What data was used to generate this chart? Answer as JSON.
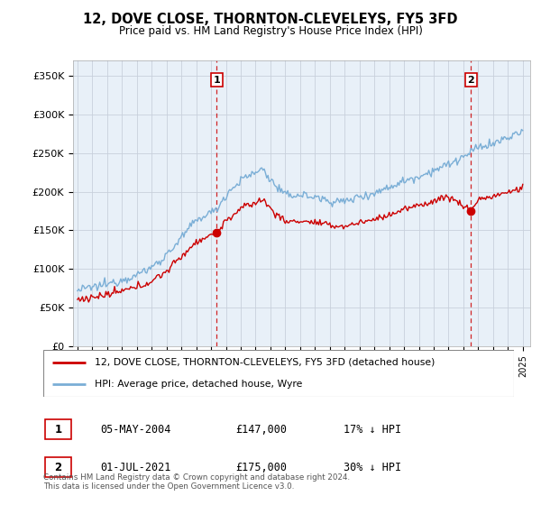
{
  "title": "12, DOVE CLOSE, THORNTON-CLEVELEYS, FY5 3FD",
  "subtitle": "Price paid vs. HM Land Registry's House Price Index (HPI)",
  "ylabel_ticks": [
    "£0",
    "£50K",
    "£100K",
    "£150K",
    "£200K",
    "£250K",
    "£300K",
    "£350K"
  ],
  "ytick_values": [
    0,
    50000,
    100000,
    150000,
    200000,
    250000,
    300000,
    350000
  ],
  "ylim": [
    0,
    370000
  ],
  "xlim_left": 1994.7,
  "xlim_right": 2025.5,
  "legend_line1": "12, DOVE CLOSE, THORNTON-CLEVELEYS, FY5 3FD (detached house)",
  "legend_line2": "HPI: Average price, detached house, Wyre",
  "sale1_date": "05-MAY-2004",
  "sale1_price": "£147,000",
  "sale1_hpi": "17% ↓ HPI",
  "sale1_label": "1",
  "sale1_t": 2004.37,
  "sale1_price_val": 147000,
  "sale2_date": "01-JUL-2021",
  "sale2_price": "£175,000",
  "sale2_hpi": "30% ↓ HPI",
  "sale2_label": "2",
  "sale2_t": 2021.5,
  "sale2_price_val": 175000,
  "footnote": "Contains HM Land Registry data © Crown copyright and database right 2024.\nThis data is licensed under the Open Government Licence v3.0.",
  "red_line_color": "#cc0000",
  "blue_line_color": "#7aaed6",
  "plot_bg_color": "#e8f0f8",
  "background_color": "#ffffff",
  "grid_color": "#c8d0dc",
  "vline_color": "#cc0000",
  "hpi_anchors_t": [
    1995.0,
    1996.0,
    1997.0,
    1998.0,
    1999.0,
    2000.0,
    2001.0,
    2002.0,
    2003.0,
    2004.37,
    2005.0,
    2006.0,
    2007.5,
    2008.0,
    2009.0,
    2010.0,
    2011.0,
    2012.0,
    2013.0,
    2014.0,
    2015.0,
    2016.0,
    2017.0,
    2018.0,
    2019.0,
    2020.0,
    2021.5,
    2022.0,
    2023.0,
    2024.0,
    2025.0
  ],
  "hpi_anchors_v": [
    72000,
    76000,
    80000,
    86000,
    92000,
    102000,
    118000,
    140000,
    163000,
    177000,
    196000,
    215000,
    230000,
    215000,
    195000,
    196000,
    193000,
    188000,
    187000,
    194000,
    198000,
    206000,
    214000,
    220000,
    228000,
    235000,
    250000,
    258000,
    262000,
    270000,
    278000
  ],
  "red_anchors_t": [
    1995.0,
    1996.0,
    1997.0,
    1998.0,
    1999.0,
    2000.0,
    2001.0,
    2002.0,
    2003.0,
    2004.37,
    2005.0,
    2006.0,
    2007.5,
    2008.0,
    2009.0,
    2010.0,
    2011.0,
    2012.0,
    2013.0,
    2014.0,
    2015.0,
    2016.0,
    2017.0,
    2018.0,
    2019.0,
    2020.0,
    2021.5,
    2022.0,
    2023.0,
    2024.0,
    2025.0
  ],
  "red_anchors_v": [
    60000,
    63000,
    66000,
    71000,
    76000,
    84000,
    97000,
    116000,
    135000,
    147000,
    162000,
    178000,
    190000,
    178000,
    161000,
    162000,
    160000,
    156000,
    155000,
    160000,
    164000,
    170000,
    177000,
    182000,
    188000,
    194000,
    175000,
    190000,
    194000,
    199000,
    205000
  ]
}
